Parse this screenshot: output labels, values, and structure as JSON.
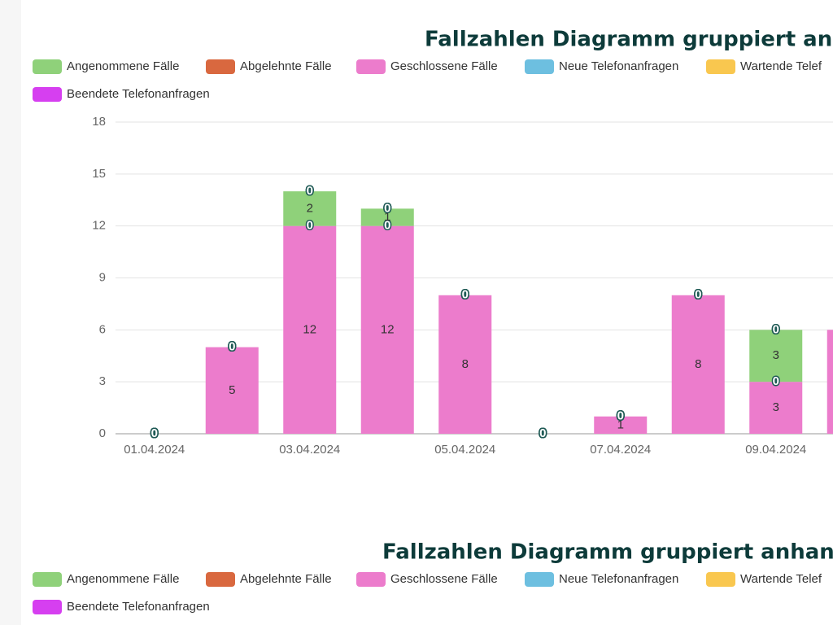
{
  "chart_data": [
    {
      "type": "bar",
      "title": "Fallzahlen Diagramm gruppiert anh",
      "categories": [
        "01.04.2024",
        null,
        "03.04.2024",
        null,
        "05.04.2024",
        null,
        "07.04.2024",
        null,
        "09.04.2024",
        null
      ],
      "series": [
        {
          "name": "Angenommene Fälle",
          "color": "#8fd17a",
          "values": [
            0,
            0,
            2,
            1,
            0,
            0,
            0,
            0,
            3,
            0
          ]
        },
        {
          "name": "Abgelehnte Fälle",
          "color": "#d9683f",
          "values": [
            0,
            0,
            0,
            0,
            0,
            0,
            0,
            0,
            0,
            0
          ]
        },
        {
          "name": "Geschlossene Fälle",
          "color": "#ec7ccc",
          "values": [
            0,
            5,
            12,
            12,
            8,
            0,
            1,
            8,
            3,
            6
          ]
        },
        {
          "name": "Neue Telefonanfragen",
          "color": "#6dbfe0",
          "values": [
            0,
            0,
            0,
            0,
            0,
            0,
            0,
            0,
            0,
            0
          ]
        },
        {
          "name": "Wartende Telef",
          "color": "#f9c74f",
          "values": [
            0,
            0,
            0,
            0,
            0,
            0,
            0,
            0,
            0,
            0
          ]
        },
        {
          "name": "Beendete Telefonanfragen",
          "color": "#d63ff0",
          "values": [
            0,
            0,
            0,
            0,
            0,
            0,
            0,
            0,
            0,
            0
          ]
        }
      ],
      "ylim": [
        0,
        18
      ],
      "yticks": [
        0,
        3,
        6,
        9,
        12,
        15,
        18
      ],
      "grid": true,
      "stacked": true
    },
    {
      "type": "bar",
      "title": "Fallzahlen Diagramm gruppiert anhand",
      "series": [
        {
          "name": "Angenommene Fälle",
          "color": "#8fd17a"
        },
        {
          "name": "Abgelehnte Fälle",
          "color": "#d9683f"
        },
        {
          "name": "Geschlossene Fälle",
          "color": "#ec7ccc"
        },
        {
          "name": "Neue Telefonanfragen",
          "color": "#6dbfe0"
        },
        {
          "name": "Wartende Telef",
          "color": "#f9c74f"
        },
        {
          "name": "Beendete Telefonanfragen",
          "color": "#d63ff0"
        }
      ]
    }
  ]
}
